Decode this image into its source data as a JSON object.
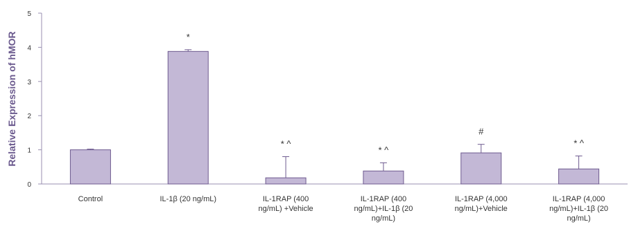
{
  "chart_data": {
    "type": "bar",
    "ylabel": "Relative Expression of hMOR",
    "ylim": [
      0,
      5
    ],
    "yticks": [
      0,
      1,
      2,
      3,
      4,
      5
    ],
    "grid": false,
    "legend": "none",
    "categories": [
      [
        "Control"
      ],
      [
        "IL-1β (20 ng/mL)"
      ],
      [
        "IL-1RAP (400",
        "ng/mL) +Vehicle"
      ],
      [
        "IL-1RAP (400",
        "ng/mL)+IL-1β (20",
        "ng/mL)"
      ],
      [
        "IL-1RAP (4,000",
        "ng/mL)+Vehicle"
      ],
      [
        "IL-1RAP (4,000",
        "ng/mL)+IL-1β (20",
        "ng/mL)"
      ]
    ],
    "values": [
      1.0,
      3.88,
      0.18,
      0.38,
      0.91,
      0.44
    ],
    "error_plus": [
      0.02,
      0.05,
      0.62,
      0.24,
      0.25,
      0.38
    ],
    "annotations": [
      "",
      "*",
      "* ^",
      "* ^",
      "#",
      "* ^"
    ],
    "colors": {
      "bar_fill": "#c3b8d6",
      "bar_stroke": "#6e5a8f",
      "axis": "#9a8fb0",
      "text": "#333333",
      "ylabel": "#6b5a8e"
    }
  }
}
